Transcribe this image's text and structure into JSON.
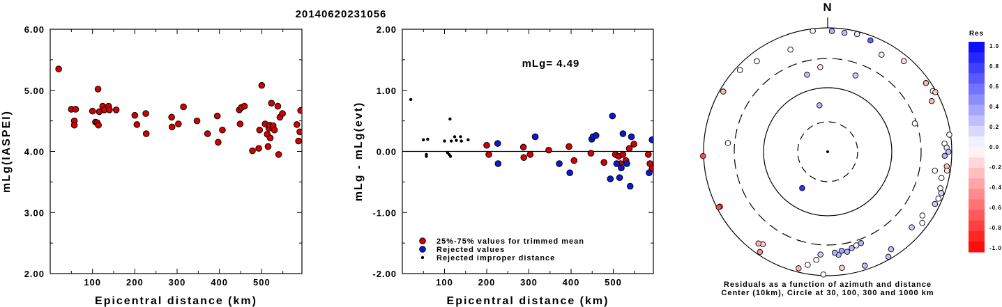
{
  "page_title": "20140620231056",
  "colors": {
    "red": "#d40000",
    "blue": "#0a1ad4",
    "black": "#000000"
  },
  "chart_data": [
    {
      "type": "scatter",
      "name": "mLg vs distance",
      "xlabel": "Epicentral distance (km)",
      "ylabel": "mLg(IASPEI)",
      "xlim": [
        0,
        595
      ],
      "ylim": [
        2.0,
        6.0
      ],
      "xticks": [
        "100",
        "200",
        "300",
        "400",
        "500"
      ],
      "yticks": [
        "2.00",
        "3.00",
        "4.00",
        "5.00",
        "6.00"
      ],
      "points": [
        [
          20,
          5.35
        ],
        [
          50,
          4.69
        ],
        [
          57,
          4.5
        ],
        [
          57,
          4.43
        ],
        [
          60,
          4.69
        ],
        [
          100,
          4.66
        ],
        [
          107,
          4.48
        ],
        [
          111,
          4.47
        ],
        [
          113,
          5.02
        ],
        [
          114,
          4.43
        ],
        [
          116,
          4.65
        ],
        [
          124,
          4.74
        ],
        [
          128,
          4.68
        ],
        [
          138,
          4.74
        ],
        [
          140,
          4.68
        ],
        [
          156,
          4.68
        ],
        [
          200,
          4.59
        ],
        [
          205,
          4.44
        ],
        [
          226,
          4.62
        ],
        [
          227,
          4.29
        ],
        [
          287,
          4.56
        ],
        [
          288,
          4.4
        ],
        [
          303,
          4.45
        ],
        [
          315,
          4.73
        ],
        [
          347,
          4.5
        ],
        [
          372,
          4.29
        ],
        [
          395,
          4.58
        ],
        [
          397,
          4.15
        ],
        [
          407,
          4.35
        ],
        [
          447,
          4.68
        ],
        [
          449,
          4.45
        ],
        [
          452,
          4.72
        ],
        [
          459,
          4.74
        ],
        [
          478,
          4.01
        ],
        [
          493,
          4.05
        ],
        [
          495,
          4.35
        ],
        [
          500,
          5.08
        ],
        [
          508,
          4.45
        ],
        [
          513,
          4.28
        ],
        [
          515,
          4.08
        ],
        [
          517,
          4.38
        ],
        [
          519,
          4.43
        ],
        [
          520,
          4.22
        ],
        [
          523,
          4.79
        ],
        [
          527,
          4.42
        ],
        [
          530,
          4.35
        ],
        [
          538,
          4.74
        ],
        [
          540,
          3.95
        ],
        [
          543,
          4.56
        ],
        [
          549,
          4.62
        ],
        [
          583,
          4.44
        ],
        [
          587,
          4.17
        ],
        [
          590,
          4.32
        ],
        [
          592,
          4.67
        ]
      ]
    },
    {
      "type": "scatter",
      "name": "residuals vs distance",
      "xlabel": "Epicentral distance (km)",
      "ylabel": "mLg - mLg(evt)",
      "annotation": "mLg= 4.49",
      "xlim": [
        0,
        595
      ],
      "ylim": [
        -2.0,
        2.0
      ],
      "xticks": [
        "100",
        "200",
        "300",
        "400",
        "500"
      ],
      "yticks": [
        "-2.00",
        "-1.00",
        "0.00",
        "1.00",
        "2.00"
      ],
      "legend": [
        {
          "label": "25%-75% values for trimmed mean",
          "marker": "red"
        },
        {
          "label": "Rejected values",
          "marker": "blue"
        },
        {
          "label": "Rejected improper distance",
          "marker": "black"
        }
      ],
      "series": [
        {
          "marker": "red",
          "points": [
            [
              200,
              0.1
            ],
            [
              205,
              -0.05
            ],
            [
              287,
              0.07
            ],
            [
              288,
              -0.1
            ],
            [
              303,
              -0.05
            ],
            [
              347,
              0.02
            ],
            [
              395,
              0.08
            ],
            [
              407,
              -0.15
            ],
            [
              447,
              -0.03
            ],
            [
              478,
              -0.18
            ],
            [
              505,
              -0.05
            ],
            [
              513,
              -0.08
            ],
            [
              517,
              -0.2
            ],
            [
              523,
              -0.05
            ],
            [
              530,
              -0.15
            ],
            [
              538,
              0.05
            ],
            [
              549,
              0.12
            ],
            [
              583,
              -0.05
            ],
            [
              587,
              -0.2
            ],
            [
              592,
              -0.28
            ]
          ]
        },
        {
          "marker": "blue",
          "points": [
            [
              226,
              0.13
            ],
            [
              227,
              -0.2
            ],
            [
              315,
              0.24
            ],
            [
              372,
              -0.2
            ],
            [
              397,
              -0.35
            ],
            [
              449,
              0.2
            ],
            [
              452,
              0.24
            ],
            [
              459,
              0.26
            ],
            [
              493,
              -0.45
            ],
            [
              498,
              0.58
            ],
            [
              508,
              -0.2
            ],
            [
              515,
              -0.43
            ],
            [
              519,
              -0.27
            ],
            [
              523,
              0.29
            ],
            [
              532,
              -0.2
            ],
            [
              540,
              -0.57
            ],
            [
              543,
              0.24
            ],
            [
              585,
              -0.35
            ],
            [
              592,
              0.19
            ]
          ]
        },
        {
          "marker": "black",
          "points": [
            [
              20,
              0.85
            ],
            [
              50,
              0.19
            ],
            [
              57,
              -0.05
            ],
            [
              57,
              -0.08
            ],
            [
              60,
              0.2
            ],
            [
              100,
              0.17
            ],
            [
              107,
              -0.02
            ],
            [
              111,
              -0.05
            ],
            [
              113,
              0.53
            ],
            [
              114,
              -0.08
            ],
            [
              116,
              0.17
            ],
            [
              124,
              0.24
            ],
            [
              128,
              0.18
            ],
            [
              138,
              0.24
            ],
            [
              140,
              0.17
            ],
            [
              156,
              0.19
            ]
          ]
        }
      ]
    },
    {
      "type": "polar",
      "name": "residual azimuth map",
      "north_label": "N",
      "caption_line1": "Residuals as a function of azimuth and distance",
      "caption_line2": "Center (10km), Circle at 30, 100, 300 and 1000 km",
      "colorbar": {
        "title": "Res",
        "ticks": [
          "1.0",
          "0.8",
          "0.6",
          "0.4",
          "0.2",
          "0.0",
          "-0.2",
          "-0.4",
          "-0.6",
          "-0.8",
          "-1.0"
        ]
      },
      "stations": [
        {
          "az": -10,
          "dist": 55,
          "res": 0.3
        },
        {
          "az": 353,
          "dist": 920,
          "res": 0.05
        },
        {
          "az": 2,
          "dist": 880,
          "res": 0.3
        },
        {
          "az": 8,
          "dist": 860,
          "res": 0.25
        },
        {
          "az": 14,
          "dist": 900,
          "res": 0.1
        },
        {
          "az": 21,
          "dist": 830,
          "res": 0.6
        },
        {
          "az": 29,
          "dist": 600,
          "res": 0.05
        },
        {
          "az": 40,
          "dist": 800,
          "res": -0.15
        },
        {
          "az": 340,
          "dist": 550,
          "res": 0.0
        },
        {
          "az": 345,
          "dist": 180,
          "res": 0.25
        },
        {
          "az": 322,
          "dist": 700,
          "res": 0.0
        },
        {
          "az": 313,
          "dist": 850,
          "res": 0.0
        },
        {
          "az": 355,
          "dist": 220,
          "res": -0.1
        },
        {
          "az": 20,
          "dist": 190,
          "res": 0.2
        },
        {
          "az": 72,
          "dist": 280,
          "res": 0.0
        },
        {
          "az": 300,
          "dist": 870,
          "res": -0.3
        },
        {
          "az": 55,
          "dist": 850,
          "res": -0.3
        },
        {
          "az": 60,
          "dist": 900,
          "res": 0.0
        },
        {
          "az": 61,
          "dist": 960,
          "res": -0.2
        },
        {
          "az": 64,
          "dist": 720,
          "res": -0.3
        },
        {
          "az": 82,
          "dist": 950,
          "res": 0.0
        },
        {
          "az": 86,
          "dist": 760,
          "res": 0.0
        },
        {
          "az": 88,
          "dist": 820,
          "res": 0.1
        },
        {
          "az": 90,
          "dist": 880,
          "res": 0.25
        },
        {
          "az": 92,
          "dist": 760,
          "res": 0.3
        },
        {
          "az": 97,
          "dist": 850,
          "res": -0.25
        },
        {
          "az": 99,
          "dist": 880,
          "res": -0.1
        },
        {
          "az": 100,
          "dist": 550,
          "res": 0.0
        },
        {
          "az": 103,
          "dist": 750,
          "res": 0.0
        },
        {
          "az": 108,
          "dist": 800,
          "res": 0.0
        },
        {
          "az": 110,
          "dist": 880,
          "res": 0.15
        },
        {
          "az": 113,
          "dist": 860,
          "res": 0.0
        },
        {
          "az": 116,
          "dist": 830,
          "res": 0.2
        },
        {
          "az": 124,
          "dist": 680,
          "res": 0.0
        },
        {
          "az": 127,
          "dist": 800,
          "res": 0.0
        },
        {
          "az": 132,
          "dist": 650,
          "res": 0.2
        },
        {
          "az": 147,
          "dist": 740,
          "res": 0.25
        },
        {
          "az": 160,
          "dist": 350,
          "res": 0.3
        },
        {
          "az": 163,
          "dist": 360,
          "res": 0.0
        },
        {
          "az": 166,
          "dist": 380,
          "res": 0.3
        },
        {
          "az": 169,
          "dist": 420,
          "res": 0.3
        },
        {
          "az": 172,
          "dist": 390,
          "res": 0.35
        },
        {
          "az": 174,
          "dist": 450,
          "res": 0.3
        },
        {
          "az": 176,
          "dist": 410,
          "res": 0.3
        },
        {
          "az": 184,
          "dist": 440,
          "res": 0.2
        },
        {
          "az": 150,
          "dist": 900,
          "res": 0.25
        },
        {
          "az": 162,
          "dist": 850,
          "res": 0.25
        },
        {
          "az": 173,
          "dist": 760,
          "res": -0.2
        },
        {
          "az": 186,
          "dist": 550,
          "res": 0.0
        },
        {
          "az": 190,
          "dist": 700,
          "res": 0.0
        },
        {
          "az": 194,
          "dist": 860,
          "res": -0.3
        },
        {
          "az": 182,
          "dist": 960,
          "res": 0.0
        },
        {
          "az": 215,
          "dist": 650,
          "res": -0.2
        },
        {
          "az": 217,
          "dist": 700,
          "res": -0.3
        },
        {
          "az": 214,
          "dist": 890,
          "res": -0.4
        },
        {
          "az": 243,
          "dist": 880,
          "res": -0.5
        },
        {
          "az": 243,
          "dist": 930,
          "res": -0.7
        },
        {
          "az": 268,
          "dist": 1050,
          "res": -0.7
        },
        {
          "az": 275,
          "dist": 390,
          "res": 0.0
        },
        {
          "az": 215,
          "dist": 50,
          "res": 0.8
        }
      ]
    }
  ]
}
